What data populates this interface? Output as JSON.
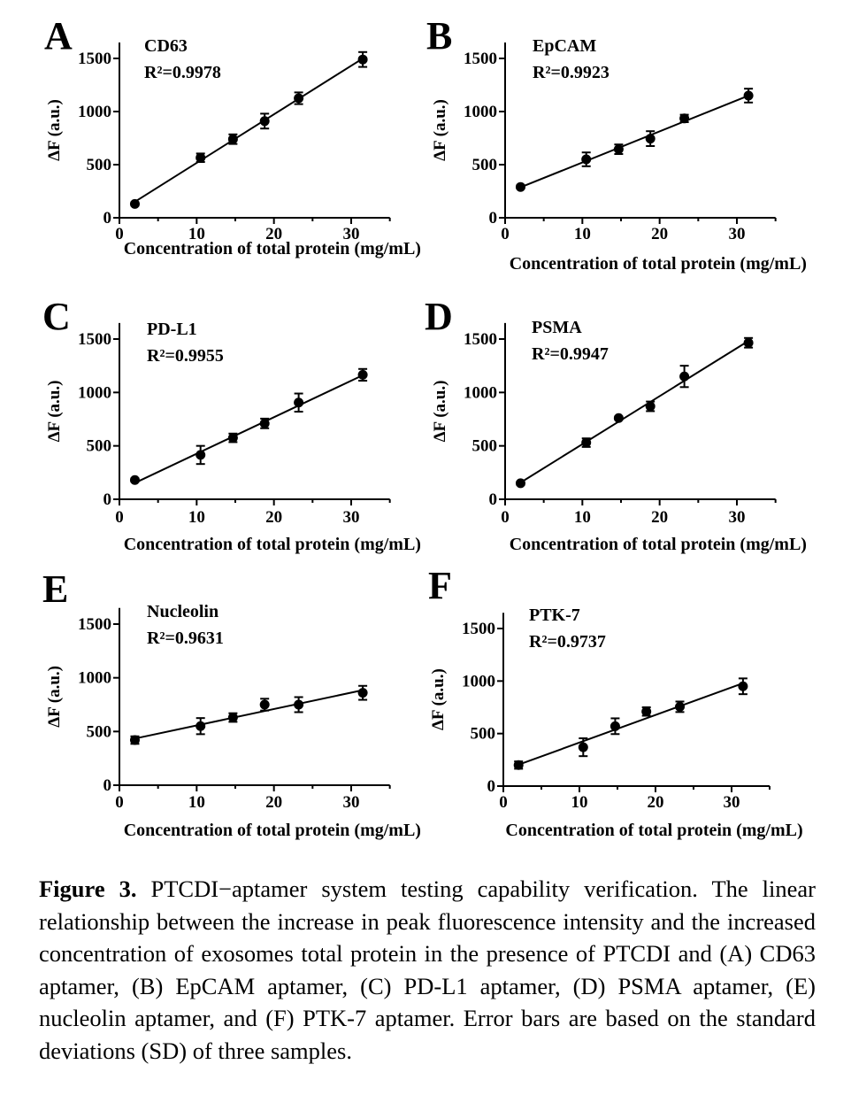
{
  "chart_data": [
    {
      "type": "scatter",
      "panel": "A",
      "title": "CD63",
      "r2": "R²=0.9978",
      "xlabel": "Concentration of total protein (mg/mL)",
      "ylabel": "ΔF (a.u.)",
      "xlim": [
        0,
        35
      ],
      "ylim": [
        0,
        1650
      ],
      "xticks": [
        "0",
        "10",
        "20",
        "30"
      ],
      "yticks": [
        "0",
        "500",
        "1000",
        "1500"
      ],
      "x": [
        2,
        10.5,
        14.7,
        18.8,
        23.2,
        31.5
      ],
      "y": [
        130,
        565,
        740,
        910,
        1125,
        1490
      ],
      "error": [
        15,
        40,
        45,
        70,
        55,
        70
      ]
    },
    {
      "type": "scatter",
      "panel": "B",
      "title": "EpCAM",
      "r2": "R²=0.9923",
      "xlabel": "Concentration of total protein (mg/mL)",
      "ylabel": "ΔF (a.u.)",
      "xlim": [
        0,
        35
      ],
      "ylim": [
        0,
        1650
      ],
      "xticks": [
        "0",
        "10",
        "20",
        "30"
      ],
      "yticks": [
        "0",
        "500",
        "1000",
        "1500"
      ],
      "x": [
        2,
        10.5,
        14.7,
        18.8,
        23.2,
        31.5
      ],
      "y": [
        290,
        550,
        645,
        745,
        935,
        1150
      ],
      "error": [
        15,
        65,
        45,
        70,
        35,
        65
      ]
    },
    {
      "type": "scatter",
      "panel": "C",
      "title": "PD-L1",
      "r2": "R²=0.9955",
      "xlabel": "Concentration of total protein (mg/mL)",
      "ylabel": "ΔF (a.u.)",
      "xlim": [
        0,
        35
      ],
      "ylim": [
        0,
        1650
      ],
      "xticks": [
        "0",
        "10",
        "20",
        "30"
      ],
      "yticks": [
        "0",
        "500",
        "1000",
        "1500"
      ],
      "x": [
        2,
        10.5,
        14.7,
        18.8,
        23.2,
        31.5
      ],
      "y": [
        180,
        415,
        575,
        710,
        905,
        1165
      ],
      "error": [
        15,
        85,
        40,
        45,
        85,
        55
      ]
    },
    {
      "type": "scatter",
      "panel": "D",
      "title": "PSMA",
      "r2": "R²=0.9947",
      "xlabel": "Concentration of total protein (mg/mL)",
      "ylabel": "ΔF (a.u.)",
      "xlim": [
        0,
        35
      ],
      "ylim": [
        0,
        1650
      ],
      "xticks": [
        "0",
        "10",
        "20",
        "30"
      ],
      "yticks": [
        "0",
        "500",
        "1000",
        "1500"
      ],
      "x": [
        2,
        10.5,
        14.7,
        18.8,
        23.2,
        31.5
      ],
      "y": [
        150,
        530,
        760,
        870,
        1150,
        1465
      ],
      "error": [
        15,
        40,
        15,
        45,
        100,
        45
      ]
    },
    {
      "type": "scatter",
      "panel": "E",
      "title": "Nucleolin",
      "r2": "R²=0.9631",
      "xlabel": "Concentration of total protein (mg/mL)",
      "ylabel": "ΔF (a.u.)",
      "xlim": [
        0,
        35
      ],
      "ylim": [
        0,
        1650
      ],
      "xticks": [
        "0",
        "10",
        "20",
        "30"
      ],
      "yticks": [
        "0",
        "500",
        "1000",
        "1500"
      ],
      "x": [
        2,
        10.5,
        14.7,
        18.8,
        23.2,
        31.5
      ],
      "y": [
        420,
        550,
        630,
        750,
        750,
        860
      ],
      "error": [
        35,
        75,
        40,
        55,
        70,
        65
      ]
    },
    {
      "type": "scatter",
      "panel": "F",
      "title": "PTK-7",
      "r2": "R²=0.9737",
      "xlabel": "Concentration of total protein (mg/mL)",
      "ylabel": "ΔF (a.u.)",
      "xlim": [
        0,
        35
      ],
      "ylim": [
        0,
        1650
      ],
      "xticks": [
        "0",
        "10",
        "20",
        "30"
      ],
      "yticks": [
        "0",
        "500",
        "1000",
        "1500"
      ],
      "x": [
        2,
        10.5,
        14.7,
        18.8,
        23.2,
        31.5
      ],
      "y": [
        200,
        370,
        570,
        710,
        755,
        950
      ],
      "error": [
        35,
        85,
        75,
        40,
        50,
        75
      ]
    }
  ],
  "caption": {
    "label": "Figure 3.",
    "text": "PTCDI−aptamer system testing capability verification. The linear relationship between the increase in peak fluorescence intensity and the increased concentration of exosomes total protein in the presence of PTCDI and (A) CD63 aptamer, (B) EpCAM aptamer, (C) PD-L1 aptamer, (D) PSMA aptamer, (E) nucleolin aptamer, and (F) PTK-7 aptamer. Error bars are based on the standard deviations (SD) of three samples."
  }
}
